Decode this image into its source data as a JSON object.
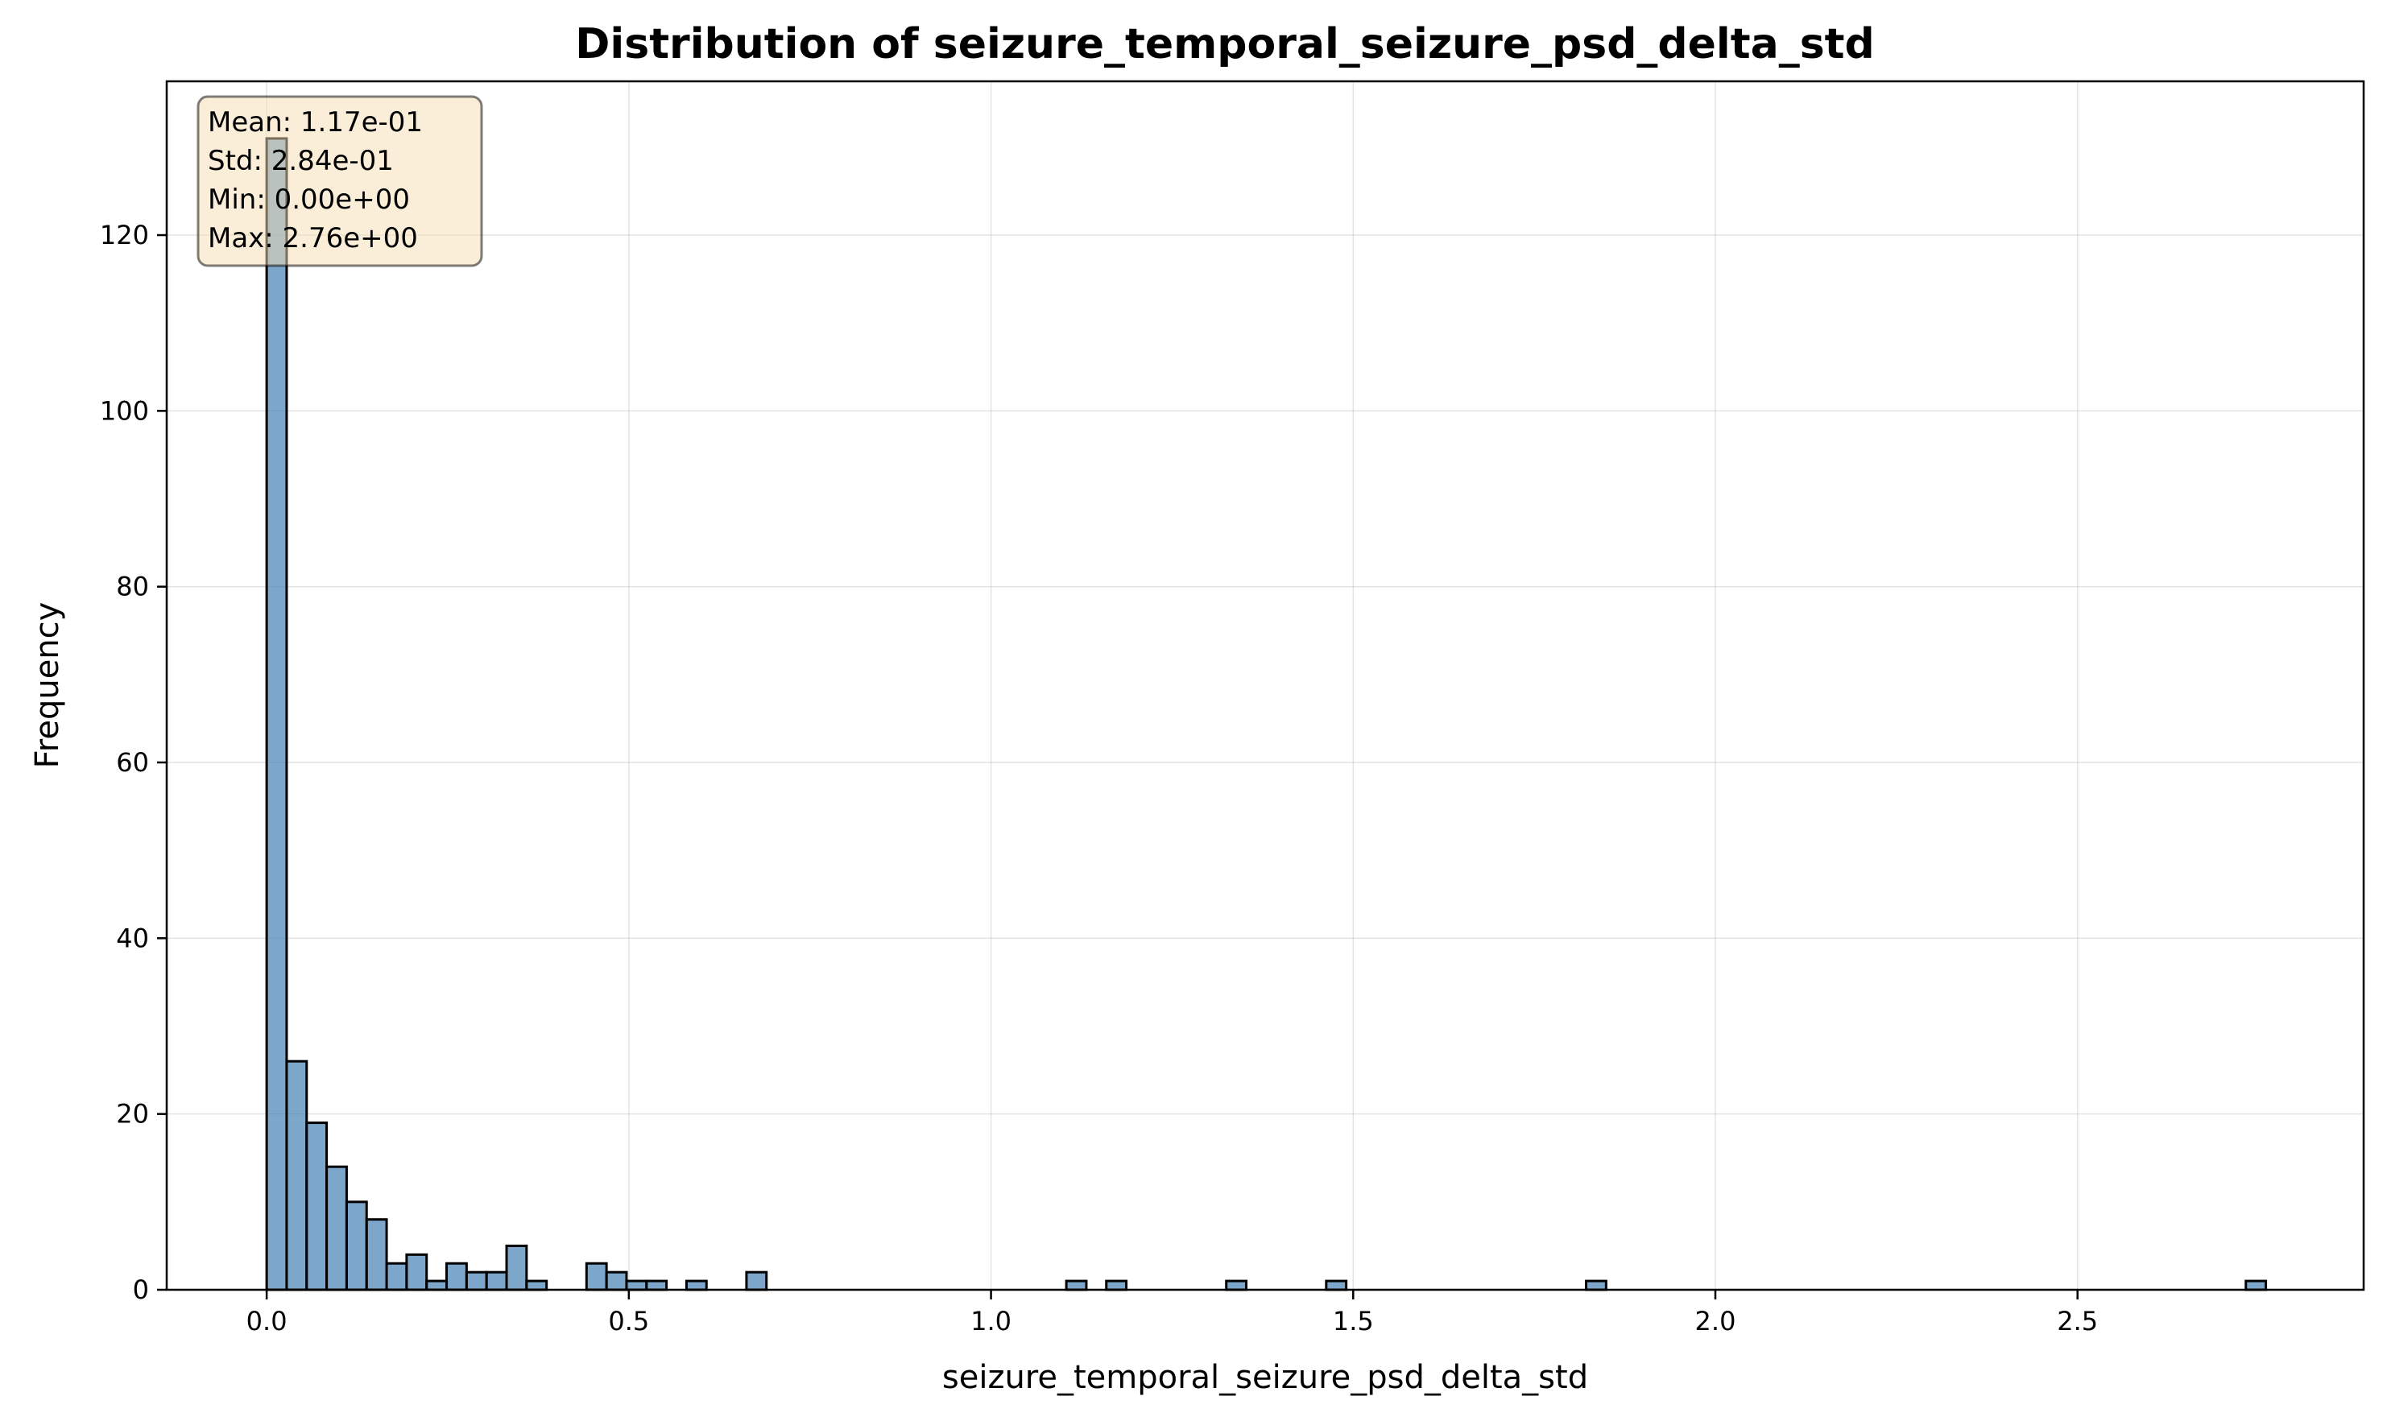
{
  "chart_data": {
    "type": "bar",
    "title": "Distribution of seizure_temporal_seizure_psd_delta_std",
    "xlabel": "seizure_temporal_seizure_psd_delta_std",
    "ylabel": "Frequency",
    "xlim": [
      -0.138,
      2.895
    ],
    "ylim": [
      0,
      137.5
    ],
    "xticks": [
      0.0,
      0.5,
      1.0,
      1.5,
      2.0,
      2.5
    ],
    "xtick_labels": [
      "0.0",
      "0.5",
      "1.0",
      "1.5",
      "2.0",
      "2.5"
    ],
    "yticks": [
      0,
      20,
      40,
      60,
      80,
      100,
      120
    ],
    "ytick_labels": [
      "0",
      "20",
      "40",
      "60",
      "80",
      "100",
      "120"
    ],
    "grid": true,
    "bar_color": "#4682b4",
    "bin_width": 0.0276,
    "bins": [
      {
        "x": 0.0,
        "count": 131
      },
      {
        "x": 0.0276,
        "count": 26
      },
      {
        "x": 0.0552,
        "count": 19
      },
      {
        "x": 0.0828,
        "count": 14
      },
      {
        "x": 0.1104,
        "count": 10
      },
      {
        "x": 0.138,
        "count": 8
      },
      {
        "x": 0.1656,
        "count": 3
      },
      {
        "x": 0.1932,
        "count": 4
      },
      {
        "x": 0.2208,
        "count": 1
      },
      {
        "x": 0.2484,
        "count": 3
      },
      {
        "x": 0.276,
        "count": 2
      },
      {
        "x": 0.3036,
        "count": 2
      },
      {
        "x": 0.3312,
        "count": 5
      },
      {
        "x": 0.3588,
        "count": 1
      },
      {
        "x": 0.4416,
        "count": 3
      },
      {
        "x": 0.4692,
        "count": 2
      },
      {
        "x": 0.4968,
        "count": 1
      },
      {
        "x": 0.5244,
        "count": 1
      },
      {
        "x": 0.5796,
        "count": 1
      },
      {
        "x": 0.6624,
        "count": 2
      },
      {
        "x": 1.104,
        "count": 1
      },
      {
        "x": 1.1592,
        "count": 1
      },
      {
        "x": 1.3248,
        "count": 1
      },
      {
        "x": 1.4628,
        "count": 1
      },
      {
        "x": 1.8216,
        "count": 1
      },
      {
        "x": 2.7324,
        "count": 1
      }
    ],
    "stats": {
      "mean": "Mean: 1.17e-01",
      "std": "Std: 2.84e-01",
      "min": "Min: 0.00e+00",
      "max": "Max: 2.76e+00"
    },
    "stats_box_color": "#f5deb3",
    "stats_placement": "top-left"
  }
}
